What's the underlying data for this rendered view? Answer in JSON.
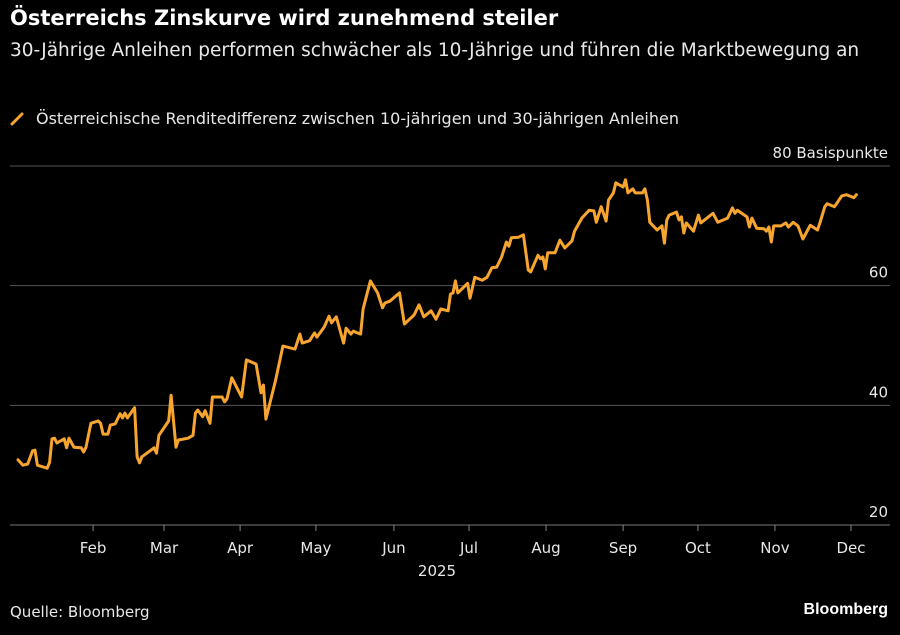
{
  "header": {
    "title": "Österreichs Zinskurve wird zunehmend steiler",
    "subtitle": "30-Jährige Anleihen performen schwächer als 10-Jährige und führen die Marktbewegung an"
  },
  "footer": {
    "source": "Quelle: Bloomberg",
    "brand": "Bloomberg"
  },
  "colors": {
    "line": "#f8a530",
    "grid": "#555555",
    "background": "#000000"
  },
  "chart_data": {
    "type": "line",
    "title": "Österreichs Zinskurve wird zunehmend steiler",
    "legend": [
      "Österreichische Renditedifferenz zwischen 10-jährigen und 30-jährigen Anleihen"
    ],
    "legend_placement": "top-left",
    "xlabel": "2025",
    "ylabel": "Basispunkte",
    "ylim": [
      20,
      80
    ],
    "xlim": [
      0,
      355
    ],
    "grid": true,
    "y_ticks": [
      {
        "value": 80,
        "label": "80 Basispunkte"
      },
      {
        "value": 60,
        "label": "60"
      },
      {
        "value": 40,
        "label": "40"
      },
      {
        "value": 20,
        "label": "20"
      }
    ],
    "x_ticks": [
      {
        "value": 30.9,
        "label": "Feb"
      },
      {
        "value": 60.1,
        "label": "Mar"
      },
      {
        "value": 91.4,
        "label": "Apr"
      },
      {
        "value": 122.6,
        "label": "May"
      },
      {
        "value": 154.7,
        "label": "Jun"
      },
      {
        "value": 185.6,
        "label": "Jul"
      },
      {
        "value": 217.3,
        "label": "Aug"
      },
      {
        "value": 249,
        "label": "Sep"
      },
      {
        "value": 279.8,
        "label": "Oct"
      },
      {
        "value": 311.5,
        "label": "Nov"
      },
      {
        "value": 342.8,
        "label": "Dec"
      }
    ],
    "series": [
      {
        "name": "Österreichische Renditedifferenz zwischen 10-jährigen und 30-jährigen Anleihen",
        "x": [
          0,
          2,
          4,
          6,
          7,
          8,
          12,
          13,
          14,
          15,
          16,
          19,
          20,
          21,
          23,
          26,
          27,
          28,
          30,
          33,
          34,
          35,
          37,
          38,
          40,
          42,
          43,
          44,
          45,
          48,
          49,
          50,
          51,
          56,
          57,
          58,
          62,
          63,
          65,
          66,
          70,
          72,
          73,
          74,
          76,
          77,
          79,
          80,
          84,
          85,
          86,
          88,
          92,
          94,
          98,
          100,
          101,
          102,
          106,
          109,
          114,
          116,
          117,
          120,
          122,
          123,
          126,
          128,
          129,
          131,
          134,
          135,
          137,
          138,
          141,
          142,
          145,
          148,
          150,
          151,
          153,
          157,
          159,
          163,
          165,
          167,
          170,
          172,
          174,
          177,
          178,
          179,
          180,
          181,
          185,
          186,
          188,
          191,
          193,
          195,
          197,
          199,
          201,
          202,
          203,
          206,
          208,
          210,
          211,
          214,
          215,
          216,
          217,
          218,
          221,
          223,
          225,
          228,
          229,
          230,
          232,
          235,
          237,
          238,
          240,
          242,
          243,
          245,
          246,
          249,
          250,
          251,
          253,
          254,
          257,
          258,
          259,
          260,
          263,
          265,
          266,
          267,
          268,
          271,
          272,
          273,
          274,
          275,
          278,
          280,
          281,
          286,
          288,
          292,
          294,
          295,
          296,
          300,
          301,
          302,
          304,
          307,
          308,
          309,
          310,
          311,
          314,
          316,
          317,
          319,
          321,
          323,
          326,
          329,
          330,
          332,
          333,
          336,
          339,
          341,
          344,
          345
        ],
        "values": [
          30.9,
          30.0,
          30.2,
          32.4,
          32.5,
          30.0,
          29.5,
          30.5,
          34.4,
          34.5,
          33.7,
          34.4,
          32.9,
          34.5,
          33.0,
          32.9,
          32.2,
          33.0,
          37.0,
          37.4,
          37.0,
          35.2,
          35.2,
          36.7,
          36.9,
          38.6,
          37.9,
          38.7,
          37.9,
          39.6,
          31.4,
          30.4,
          31.4,
          32.9,
          32.0,
          35.0,
          37.4,
          41.7,
          33.0,
          34.2,
          34.5,
          35.0,
          38.7,
          39.2,
          38.1,
          39.1,
          37.0,
          41.4,
          41.4,
          40.6,
          41.1,
          44.6,
          41.4,
          47.6,
          46.9,
          42.1,
          43.4,
          37.7,
          44.2,
          49.9,
          49.4,
          51.9,
          50.4,
          50.8,
          52.1,
          51.4,
          53.1,
          54.9,
          53.8,
          54.8,
          50.4,
          52.9,
          51.9,
          52.4,
          51.9,
          56.1,
          60.8,
          58.8,
          56.3,
          57.1,
          57.4,
          58.8,
          53.6,
          55.1,
          56.8,
          54.8,
          55.8,
          54.4,
          56.1,
          55.8,
          58.6,
          58.8,
          60.8,
          58.8,
          60.4,
          57.9,
          61.4,
          60.9,
          61.4,
          63.0,
          63.1,
          64.8,
          67.3,
          66.6,
          68.0,
          68.1,
          68.5,
          62.6,
          62.3,
          65.1,
          64.5,
          64.8,
          62.8,
          65.5,
          65.5,
          67.6,
          66.3,
          67.5,
          69.1,
          69.8,
          71.3,
          72.6,
          72.5,
          70.6,
          73.2,
          70.8,
          74.3,
          75.5,
          77.2,
          76.5,
          77.7,
          75.5,
          76.2,
          75.5,
          75.5,
          76.2,
          74.3,
          70.6,
          69.3,
          70.0,
          67.1,
          71.0,
          71.8,
          72.3,
          71.0,
          71.5,
          68.8,
          70.5,
          69.1,
          71.8,
          70.5,
          72.1,
          70.6,
          71.3,
          73.0,
          72.1,
          72.6,
          71.5,
          69.8,
          71.3,
          69.6,
          69.5,
          69.1,
          69.8,
          67.3,
          70.0,
          70.0,
          70.5,
          69.8,
          70.6,
          70.0,
          67.8,
          70.1,
          69.3,
          70.5,
          73.2,
          73.7,
          73.2,
          75.0,
          75.2,
          74.7,
          75.2
        ]
      }
    ]
  }
}
